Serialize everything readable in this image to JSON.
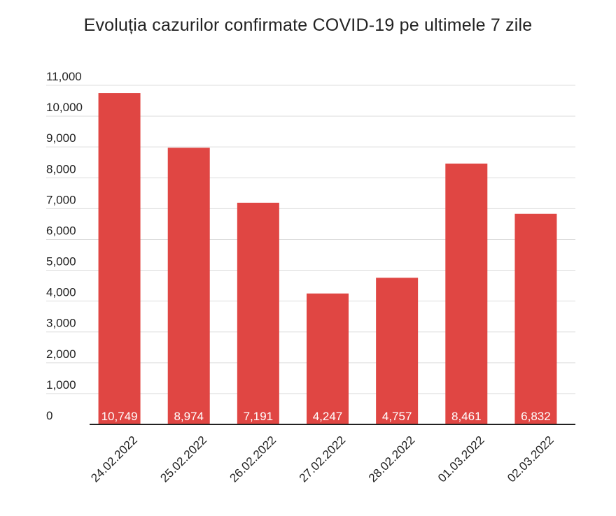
{
  "chart_data": {
    "type": "bar",
    "title": "Evoluția cazurilor confirmate COVID-19 pe ultimele 7 zile",
    "categories": [
      "24.02.2022",
      "25.02.2022",
      "26.02.2022",
      "27.02.2022",
      "28.02.2022",
      "01.03.2022",
      "02.03.2022"
    ],
    "values": [
      10749,
      8974,
      7191,
      4247,
      4757,
      8461,
      6832
    ],
    "data_labels": [
      "10,749",
      "8,974",
      "7,191",
      "4,247",
      "4,757",
      "8,461",
      "6,832"
    ],
    "y_ticks": [
      "0",
      "1,000",
      "2,000",
      "3,000",
      "4,000",
      "5,000",
      "6,000",
      "7,000",
      "8,000",
      "9,000",
      "10,000",
      "11,000"
    ],
    "ylim": [
      0,
      11000
    ],
    "xlabel": "",
    "ylabel": "",
    "grid": true,
    "legend": "none",
    "bar_color": "#e04643"
  }
}
